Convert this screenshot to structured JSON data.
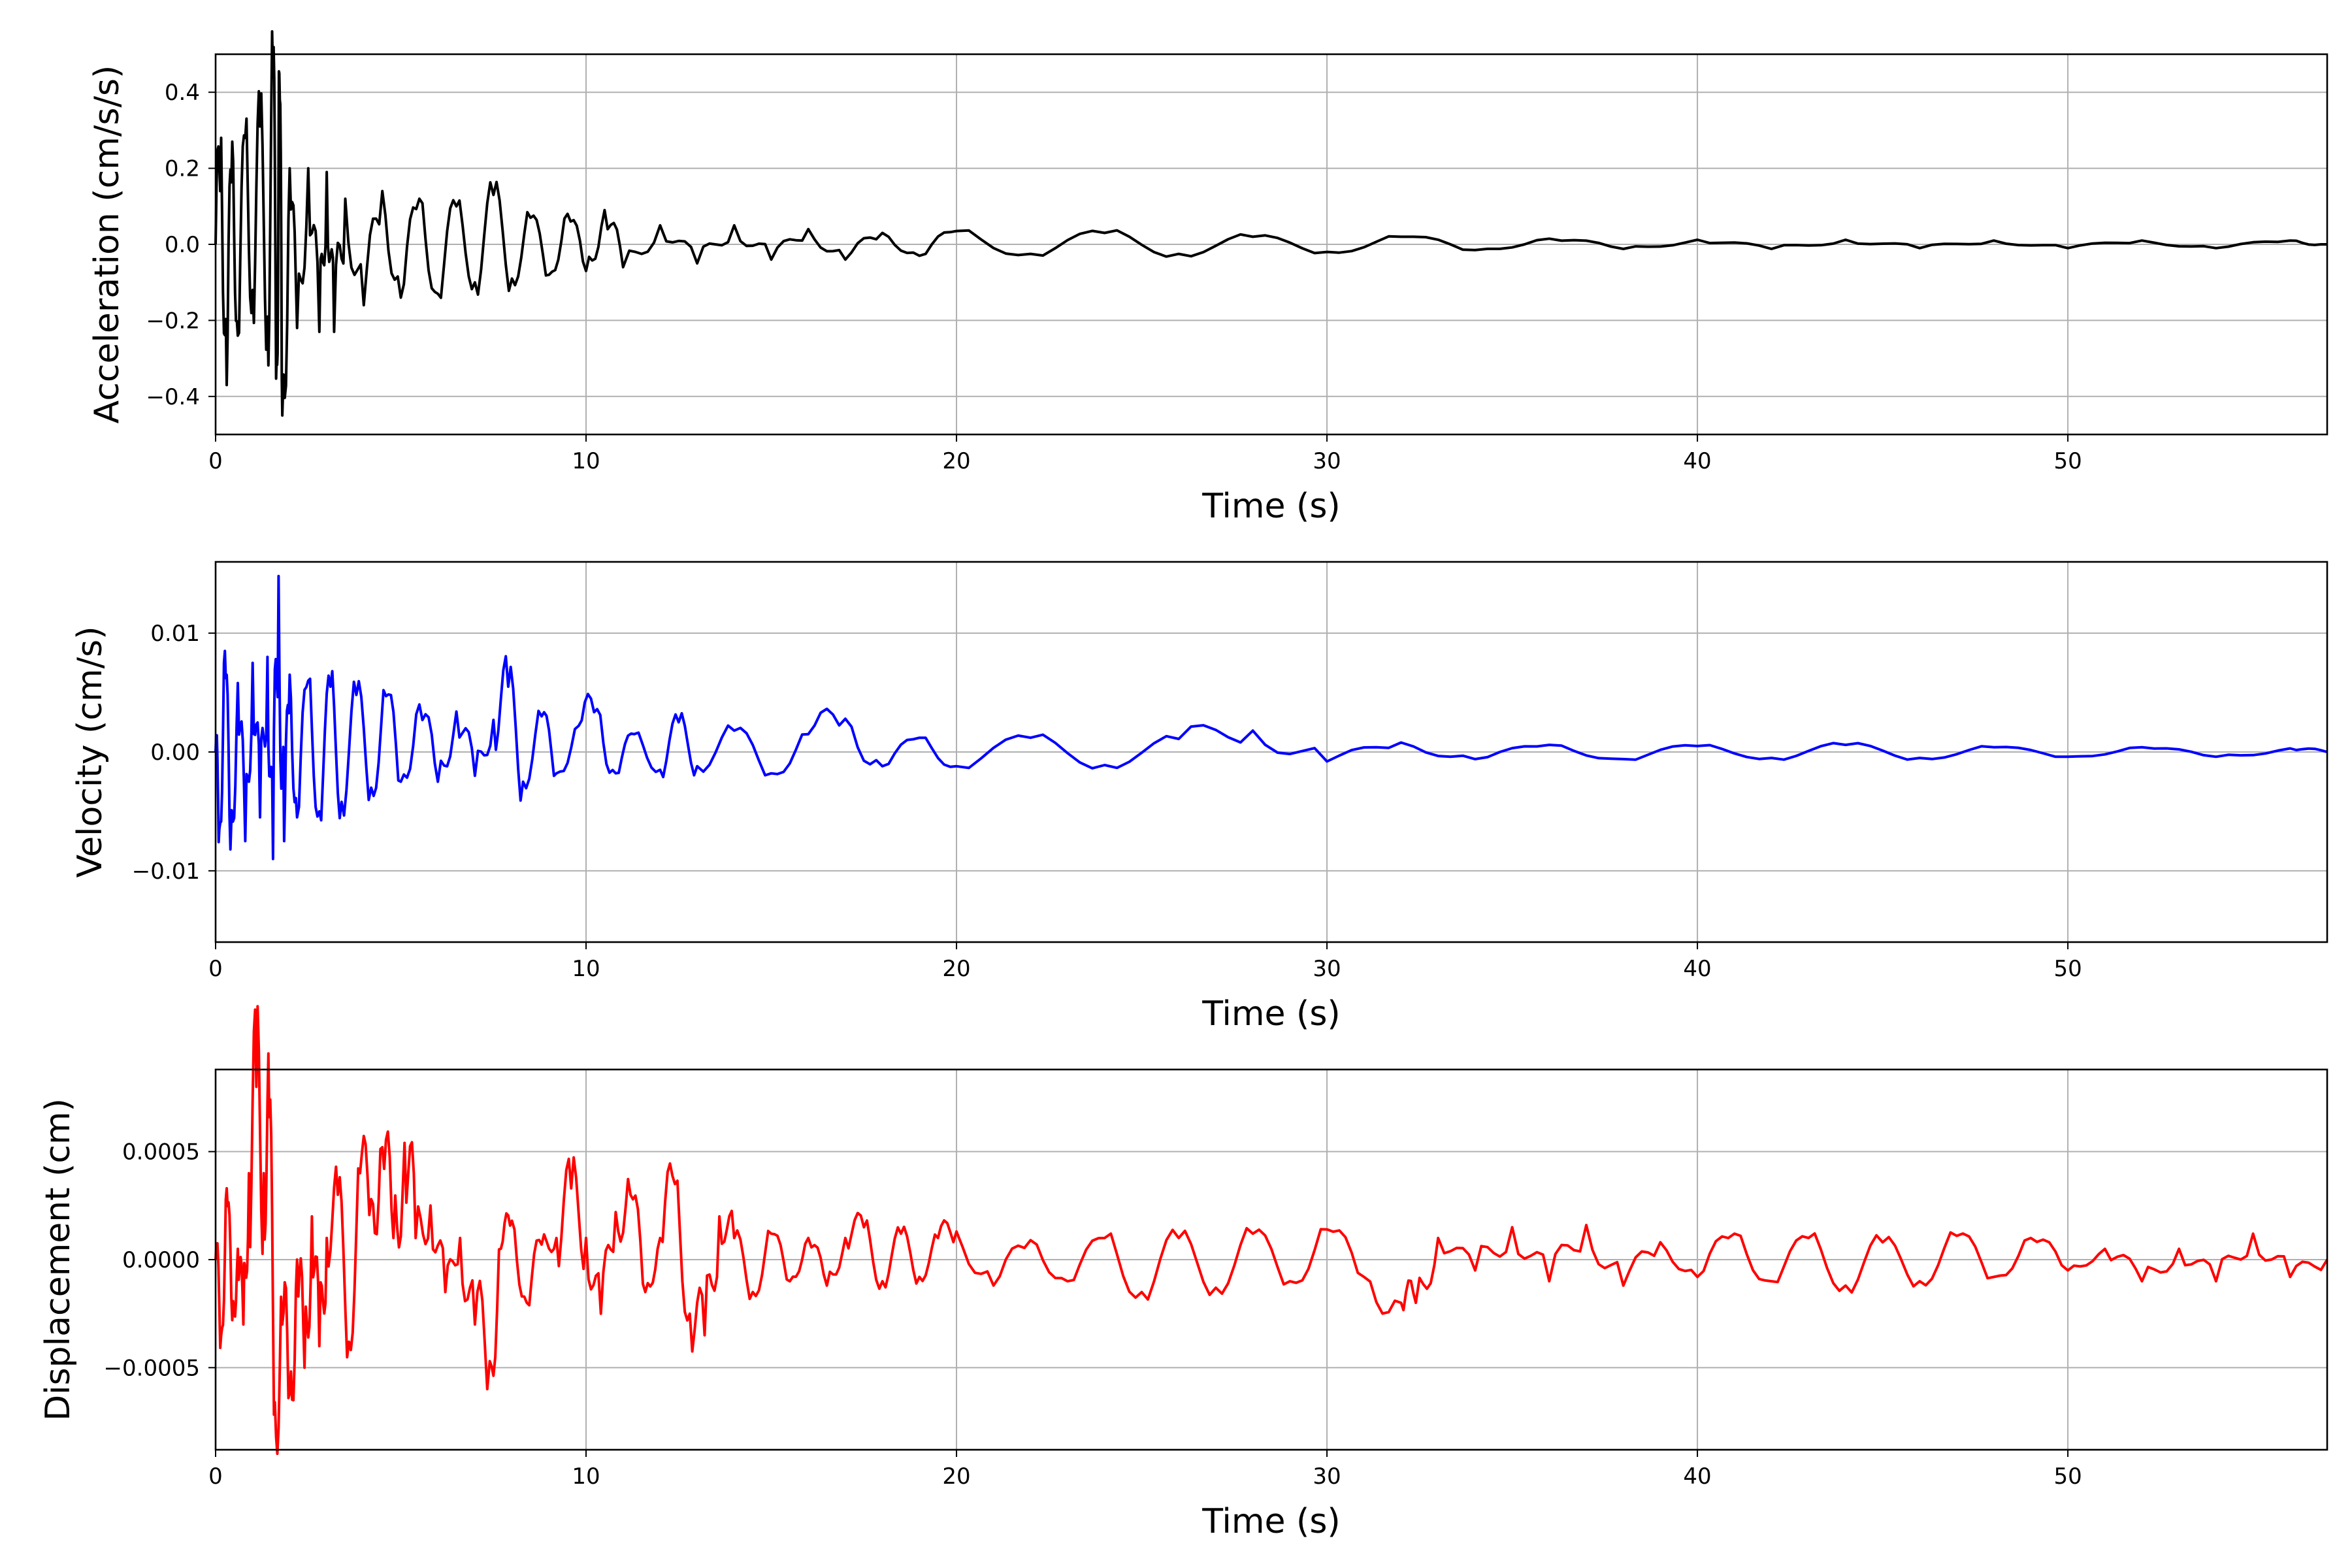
{
  "chart_data": [
    {
      "type": "line",
      "xlabel": "Time (s)",
      "ylabel": "Acceleration (cm/s/s)",
      "xlim": [
        0,
        57
      ],
      "ylim": [
        -0.5,
        0.5
      ],
      "xticks": [
        0,
        10,
        20,
        30,
        40,
        50
      ],
      "yticks": [
        -0.4,
        -0.2,
        0.0,
        0.2,
        0.4
      ],
      "ytick_labels": [
        "−0.4",
        "−0.2",
        "0.0",
        "0.2",
        "0.4"
      ],
      "grid": true,
      "series": [
        {
          "color": "#000000",
          "x": [
            0,
            0.15,
            0.3,
            0.45,
            0.6,
            0.8,
            1.0,
            1.2,
            1.4,
            1.55,
            1.65,
            1.72,
            1.8,
            2.0,
            2.2,
            2.5,
            2.8,
            3.0,
            3.2,
            3.5,
            4.0,
            4.5,
            5.0,
            5.5,
            6.0,
            6.5,
            7.0,
            7.5,
            8.0,
            8.5,
            9.0,
            9.5,
            10.0,
            10.5,
            11.0,
            12.0,
            13.0,
            14.0,
            15.0,
            16.0,
            17.0,
            18.0,
            19.0,
            20.0,
            22.0,
            24.0,
            26.0,
            28.0,
            30.0,
            32.0,
            34.0,
            36.0,
            38.0,
            40.0,
            42.0,
            44.0,
            46.0,
            48.0,
            50.0,
            52.0,
            54.0,
            56.0,
            57.0
          ],
          "y": [
            0.0,
            0.28,
            -0.37,
            0.27,
            -0.24,
            0.28,
            -0.12,
            0.31,
            -0.19,
            0.44,
            -0.29,
            0.45,
            -0.45,
            0.2,
            -0.22,
            0.2,
            -0.23,
            0.19,
            -0.23,
            0.12,
            -0.16,
            0.14,
            -0.14,
            0.12,
            -0.13,
            0.1,
            -0.1,
            0.13,
            -0.09,
            0.07,
            -0.08,
            0.08,
            -0.07,
            0.09,
            -0.06,
            0.05,
            -0.05,
            0.05,
            -0.04,
            0.04,
            -0.04,
            0.03,
            -0.03,
            0.035,
            -0.025,
            0.03,
            -0.025,
            0.02,
            -0.02,
            0.02,
            -0.015,
            0.015,
            -0.012,
            0.012,
            -0.012,
            0.012,
            -0.01,
            0.01,
            -0.01,
            0.01,
            -0.01,
            0.01,
            0.0
          ]
        }
      ]
    },
    {
      "type": "line",
      "xlabel": "Time (s)",
      "ylabel": "Velocity (cm/s)",
      "xlim": [
        0,
        57
      ],
      "ylim": [
        -0.016,
        0.016
      ],
      "xticks": [
        0,
        10,
        20,
        30,
        40,
        50
      ],
      "yticks": [
        -0.01,
        0.0,
        0.01
      ],
      "ytick_labels": [
        "−0.01",
        "0.00",
        "0.01"
      ],
      "grid": true,
      "series": [
        {
          "color": "#0000ff",
          "x": [
            0,
            0.1,
            0.25,
            0.4,
            0.6,
            0.8,
            1.0,
            1.2,
            1.4,
            1.55,
            1.7,
            1.85,
            2.0,
            2.2,
            2.5,
            2.8,
            3.1,
            3.4,
            3.8,
            4.2,
            4.6,
            5.0,
            5.5,
            6.0,
            6.5,
            7.0,
            7.5,
            7.9,
            8.3,
            8.8,
            9.2,
            9.8,
            10.3,
            10.8,
            11.3,
            12.0,
            12.5,
            13.0,
            14.0,
            15.0,
            16.0,
            17.0,
            18.0,
            19.0,
            20.0,
            22.0,
            24.0,
            26.0,
            28.0,
            30.0,
            32.0,
            34.0,
            36.0,
            38.0,
            40.0,
            42.0,
            44.0,
            46.0,
            48.0,
            50.0,
            52.0,
            54.0,
            56.0,
            57.0
          ],
          "y": [
            0.0,
            -0.0065,
            0.0085,
            -0.0082,
            0.0058,
            -0.0075,
            0.0075,
            -0.0055,
            0.008,
            -0.009,
            0.0148,
            -0.0075,
            0.0065,
            -0.0055,
            0.006,
            -0.005,
            0.0055,
            -0.0042,
            0.0048,
            -0.003,
            0.0047,
            -0.0025,
            0.004,
            -0.0025,
            0.0034,
            -0.002,
            0.0027,
            0.0055,
            -0.0025,
            0.003,
            -0.0018,
            0.0022,
            0.0036,
            -0.0018,
            0.0015,
            -0.0015,
            0.0025,
            -0.0012,
            0.0018,
            -0.0018,
            0.0015,
            0.0028,
            -0.0012,
            0.0012,
            -0.0012,
            0.0012,
            -0.0011,
            0.0011,
            0.0018,
            -0.0008,
            0.0008,
            -0.0006,
            0.0006,
            -0.0006,
            0.0005,
            -0.0005,
            0.0006,
            -0.0005,
            0.0004,
            -0.0004,
            0.0004,
            -0.0004,
            0.0003,
            0.0
          ]
        }
      ]
    },
    {
      "type": "line",
      "xlabel": "Time (s)",
      "ylabel": "Displacement (cm)",
      "xlim": [
        0,
        57
      ],
      "ylim": [
        -0.00088,
        0.00088
      ],
      "xticks": [
        0,
        10,
        20,
        30,
        40,
        50
      ],
      "yticks": [
        -0.0005,
        0.0,
        0.0005
      ],
      "ytick_labels": [
        "−0.0005",
        "0.0000",
        "0.0005"
      ],
      "grid": true,
      "series": [
        {
          "color": "#ff0000",
          "x": [
            0,
            0.15,
            0.3,
            0.45,
            0.6,
            0.75,
            0.9,
            1.1,
            1.3,
            1.45,
            1.6,
            1.8,
            2.0,
            2.2,
            2.4,
            2.6,
            2.8,
            3.0,
            3.3,
            3.6,
            3.9,
            4.2,
            4.5,
            4.8,
            5.1,
            5.4,
            5.8,
            6.2,
            6.6,
            7.0,
            7.4,
            7.7,
            8.0,
            8.4,
            8.8,
            9.2,
            9.6,
            10.0,
            10.4,
            10.8,
            11.2,
            11.6,
            12.0,
            12.4,
            12.8,
            13.2,
            13.6,
            14.0,
            14.5,
            15.0,
            15.5,
            16.0,
            16.5,
            17.0,
            17.5,
            18.0,
            18.5,
            19.0,
            19.5,
            20.0,
            21.0,
            22.0,
            23.0,
            24.0,
            25.0,
            26.0,
            27.0,
            28.0,
            29.0,
            30.0,
            31.0,
            32.0,
            32.4,
            33.0,
            34.0,
            35.0,
            36.0,
            37.0,
            38.0,
            39.0,
            40.0,
            41.0,
            42.0,
            43.0,
            44.0,
            45.0,
            46.0,
            47.0,
            48.0,
            49.0,
            50.0,
            51.0,
            52.0,
            53.0,
            54.0,
            55.0,
            56.0,
            57.0
          ],
          "y": [
            0.0,
            -0.00035,
            0.00033,
            -0.00028,
            5e-05,
            -0.0003,
            0.0004,
            0.0008,
            0.0004,
            0.00066,
            -0.00066,
            -0.0003,
            -0.00062,
            0.0,
            -0.0005,
            0.0002,
            -0.0004,
            0.0001,
            0.0003,
            -0.00038,
            0.0004,
            0.00028,
            0.00052,
            0.0001,
            0.00054,
            0.0001,
            0.00025,
            -0.00015,
            0.0001,
            -0.0003,
            -0.00047,
            5e-05,
            0.00018,
            -0.0002,
            7e-05,
            0.0001,
            0.00033,
            0.0001,
            -0.00025,
            0.00022,
            0.0003,
            -0.00015,
            0.0001,
            0.00035,
            -0.00025,
            -0.00035,
            0.0002,
            0.0001,
            -0.00015,
            0.00012,
            -0.0001,
            0.0001,
            -0.00012,
            0.0001,
            0.00015,
            -0.0001,
            0.00012,
            -8e-05,
            0.0001,
            0.00013,
            -0.00012,
            9e-05,
            -0.0001,
            0.0001,
            -0.00015,
            0.0001,
            -0.00013,
            0.00012,
            -0.0001,
            0.00014,
            -8e-05,
            -0.0002,
            -0.0002,
            0.0001,
            -5e-05,
            0.00015,
            -0.0001,
            0.00016,
            -0.00012,
            8e-05,
            -8e-05,
            0.00012,
            -0.0001,
            0.0001,
            -0.00012,
            8e-05,
            -0.0001,
            0.00011,
            -8e-05,
            0.0001,
            -5e-05,
            5e-05,
            -0.0001,
            5e-05,
            -0.0001,
            0.00012,
            -8e-05,
            0.0
          ]
        }
      ]
    }
  ]
}
